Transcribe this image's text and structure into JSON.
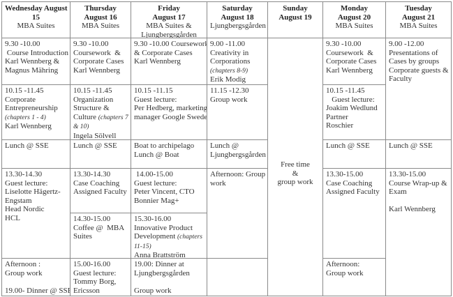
{
  "headers": [
    {
      "bold": [
        "Wednesday August",
        "15"
      ],
      "place": [
        "MBA Suites"
      ]
    },
    {
      "bold": [
        "Thursday",
        "August 16"
      ],
      "place": [
        "MBA Suites"
      ]
    },
    {
      "bold": [
        "Friday",
        "August 17"
      ],
      "place": [
        "MBA Suites &",
        "Ljungbergsgården"
      ]
    },
    {
      "bold": [
        "Saturday",
        "August 18"
      ],
      "place": [
        "Ljungbergsgården"
      ]
    },
    {
      "bold": [
        "Sunday",
        "August 19"
      ],
      "place": []
    },
    {
      "bold": [
        "Monday",
        "August 20"
      ],
      "place": [
        "MBA Suites"
      ]
    },
    {
      "bold": [
        "Tuesday",
        "August 21"
      ],
      "place": [
        "MBA Suites"
      ]
    }
  ],
  "cells": {
    "wed1": [
      {
        "t": "9.30 -10.00"
      },
      {
        "t": " Course Introduction"
      },
      {
        "t": "Karl Wennberg &"
      },
      {
        "t": "Magnus Mähring"
      }
    ],
    "wed2": [
      {
        "t": "10.15 -11.45"
      },
      {
        "t": "Corporate"
      },
      {
        "t": "Entrepreneurship"
      },
      {
        "i": "(chapters 1 - 4)"
      },
      {
        "t": "Karl Wennberg"
      }
    ],
    "wed3": [
      {
        "t": "Lunch @ SSE"
      }
    ],
    "wed4": [
      {
        "t": "13.30-14.30"
      },
      {
        "t": "Guest lecture:"
      },
      {
        "t": "Liselotte Hägertz-"
      },
      {
        "t": "Engstam"
      },
      {
        "t": "Head Nordic"
      },
      {
        "t": "HCL"
      }
    ],
    "wed5": [
      {
        "t": "Afternoon :"
      },
      {
        "t": "Group work"
      },
      {
        "t": ""
      },
      {
        "t": "19.00- Dinner @ SSE"
      }
    ],
    "thu1": [
      {
        "t": "9.30 -10.00"
      },
      {
        "t": "Coursework  &"
      },
      {
        "t": "Corporate Cases"
      },
      {
        "t": "Karl Wennberg"
      }
    ],
    "thu2": [
      {
        "t": "10.15 -11.45"
      },
      {
        "t": "Organization"
      },
      {
        "t": "Structure &"
      },
      {
        "t": "Culture ",
        "i": "(chapters 7"
      },
      {
        "i": "& 10)"
      },
      {
        "t": "Ingela Sölvell"
      }
    ],
    "thu3": [
      {
        "t": "Lunch @ SSE"
      }
    ],
    "thu4": [
      {
        "t": "13.30-14.30"
      },
      {
        "t": "Case Coaching"
      },
      {
        "t": "Assigned Faculty"
      }
    ],
    "thu5": [
      {
        "t": "14.30-15.00"
      },
      {
        "t": "Coffee @  MBA"
      },
      {
        "t": "Suites"
      }
    ],
    "thu6": [
      {
        "t": "15.00-16.00"
      },
      {
        "t": "Guest lecture:"
      },
      {
        "t": "Tommy Borg,"
      },
      {
        "t": "Ericsson"
      }
    ],
    "fri1": [
      {
        "t": "9.30 -10.00 Coursework"
      },
      {
        "t": "& Corporate Cases"
      },
      {
        "t": "Karl Wennberg"
      }
    ],
    "fri2": [
      {
        "t": "10.15 -11.15"
      },
      {
        "t": "Guest lecture:"
      },
      {
        "t": "Per Hedberg, marketing"
      },
      {
        "t": "manager Google Sweden"
      }
    ],
    "fri3": [
      {
        "t": "Boat to archipelago"
      },
      {
        "t": "Lunch @ Boat"
      }
    ],
    "fri4": [
      {
        "t": " 14.00-15.00"
      },
      {
        "t": "Guest lecture:"
      },
      {
        "t": "Peter Vincent, CTO"
      },
      {
        "t": "Bonnier Mag+"
      }
    ],
    "fri5": [
      {
        "t": "15.30-16.00"
      },
      {
        "t": "Innovative Product"
      },
      {
        "t": "Development ",
        "i": "(chapters"
      },
      {
        "i": "11-15)"
      },
      {
        "t": "Anna Brattström"
      }
    ],
    "fri6": [
      {
        "t": "19.00: Dinner at"
      },
      {
        "t": "Ljungbergsgården"
      },
      {
        "t": ""
      },
      {
        "t": "Group work"
      }
    ],
    "sat1": [
      {
        "t": "9.00 -11.00"
      },
      {
        "t": "Creativity in"
      },
      {
        "t": "Corporations"
      },
      {
        "i": "(chapters 8-9)"
      },
      {
        "t": "Erik Modig"
      }
    ],
    "sat2": [
      {
        "t": "11.15 -12.30"
      },
      {
        "t": "Group work"
      }
    ],
    "sat3": [
      {
        "t": "Lunch @"
      },
      {
        "t": "Ljungbergsgården"
      }
    ],
    "sat4": [
      {
        "t": "Afternoon: Group"
      },
      {
        "t": "work"
      }
    ],
    "sat5": [],
    "sun1": [
      {
        "t": "Free time"
      },
      {
        "t": "&"
      },
      {
        "t": "group work"
      }
    ],
    "mon1": [
      {
        "t": "9.30 -10.00"
      },
      {
        "t": "Coursework  &"
      },
      {
        "t": "Corporate Cases"
      },
      {
        "t": "Karl Wennberg"
      }
    ],
    "mon2": [
      {
        "t": "10.15 -11.45"
      },
      {
        "t": "   Guest lecture:"
      },
      {
        "t": "Joakim Wedlund"
      },
      {
        "t": "Partner"
      },
      {
        "t": "Roschier"
      }
    ],
    "mon3": [
      {
        "t": "Lunch @ SSE"
      }
    ],
    "mon4": [
      {
        "t": "13.30-15.00"
      },
      {
        "t": "Case Coaching"
      },
      {
        "t": "Assigned Faculty"
      }
    ],
    "mon5": [
      {
        "t": "Afternoon:"
      },
      {
        "t": "Group work"
      }
    ],
    "tue1": [
      {
        "t": "9.00 -12.00"
      },
      {
        "t": "Presentations of"
      },
      {
        "t": "Cases by groups"
      },
      {
        "t": "Corporate guests &"
      },
      {
        "t": "Faculty"
      }
    ],
    "tue2": [
      {
        "t": "Lunch @ SSE"
      }
    ],
    "tue3": [
      {
        "t": "13.30-15.00"
      },
      {
        "t": "Course Wrap-up &"
      },
      {
        "t": "Exam"
      },
      {
        "t": ""
      },
      {
        "t": "Karl Wennberg"
      }
    ]
  }
}
